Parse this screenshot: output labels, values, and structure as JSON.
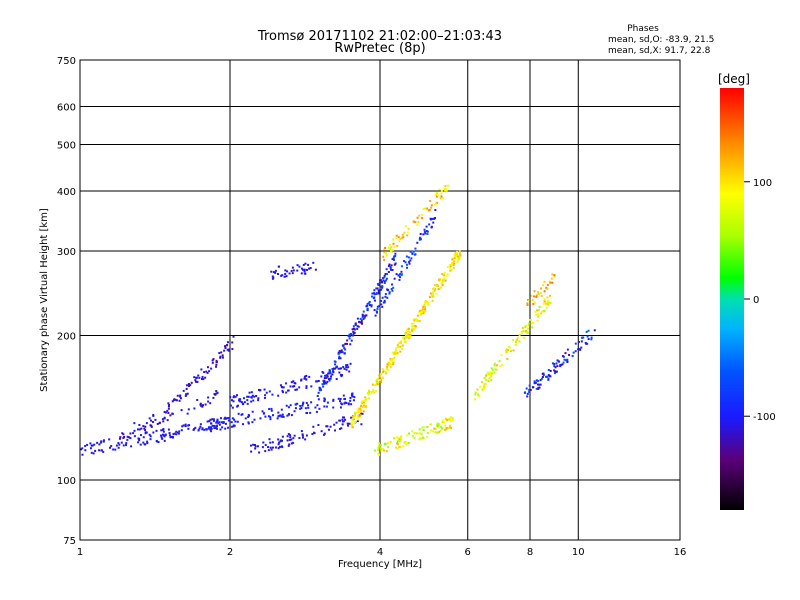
{
  "header": {
    "title_line1": "Tromsø 20171102 21:02:00–21:03:43",
    "title_line2": "RwPretec (8p)"
  },
  "stats": {
    "heading": "Phases",
    "line_O": "mean, sd,O: -83.9, 21.5",
    "line_X": "mean, sd,X:  91.7, 22.8"
  },
  "chart_data": {
    "type": "scatter",
    "xlabel": "Frequency [MHz]",
    "ylabel": "Stationary phase Virtual Height [km]",
    "x_scale": "log",
    "y_scale": "log",
    "xlim": [
      1,
      16
    ],
    "ylim": [
      75,
      750
    ],
    "x_ticks": [
      1,
      2,
      4,
      6,
      8,
      10,
      16
    ],
    "x_tick_labels": [
      "1",
      "2",
      "4",
      "6",
      "8",
      "10",
      "16"
    ],
    "y_ticks": [
      75,
      100,
      200,
      300,
      400,
      500,
      600,
      750
    ],
    "y_tick_labels": [
      "75",
      "100",
      "200",
      "300",
      "400",
      "500",
      "600",
      "750"
    ],
    "grid": true,
    "colorbar": {
      "label": "[deg]",
      "range": [
        -180,
        180
      ],
      "ticks": [
        100,
        0,
        -100
      ],
      "tick_labels": [
        "100",
        "0",
        "-100"
      ]
    },
    "traces": [
      {
        "x_range": [
          1.0,
          2.0
        ],
        "h0": 115,
        "h1": 132,
        "phase": -105,
        "spread": 10,
        "n": 140
      },
      {
        "x_range": [
          1.2,
          1.9
        ],
        "h0": 125,
        "h1": 150,
        "phase": -110,
        "spread": 12,
        "n": 60
      },
      {
        "x_range": [
          1.5,
          2.05
        ],
        "h0": 140,
        "h1": 195,
        "phase": -115,
        "spread": 16,
        "n": 70
      },
      {
        "x_range": [
          1.8,
          3.6
        ],
        "h0": 130,
        "h1": 148,
        "phase": -100,
        "spread": 6,
        "n": 130
      },
      {
        "x_range": [
          2.0,
          3.5
        ],
        "h0": 145,
        "h1": 170,
        "phase": -105,
        "spread": 8,
        "n": 110
      },
      {
        "x_range": [
          2.4,
          3.0
        ],
        "h0": 268,
        "h1": 280,
        "phase": -108,
        "spread": 6,
        "n": 40
      },
      {
        "x_range": [
          2.2,
          3.7
        ],
        "h0": 115,
        "h1": 135,
        "phase": -108,
        "spread": 8,
        "n": 90
      },
      {
        "x_range": [
          3.0,
          4.3
        ],
        "h0": 150,
        "h1": 290,
        "phase": -95,
        "spread": 35,
        "n": 170
      },
      {
        "x_range": [
          3.5,
          5.8
        ],
        "h0": 130,
        "h1": 300,
        "phase": 95,
        "spread": 30,
        "n": 280
      },
      {
        "x_range": [
          4.0,
          5.5
        ],
        "h0": 290,
        "h1": 410,
        "phase": 105,
        "spread": 35,
        "n": 70
      },
      {
        "x_range": [
          3.9,
          5.6
        ],
        "h0": 115,
        "h1": 132,
        "phase": 80,
        "spread": 40,
        "n": 110
      },
      {
        "x_range": [
          3.9,
          5.2
        ],
        "h0": 220,
        "h1": 360,
        "phase": -85,
        "spread": 30,
        "n": 80
      },
      {
        "x_range": [
          6.2,
          8.8
        ],
        "h0": 150,
        "h1": 240,
        "phase": 85,
        "spread": 35,
        "n": 110
      },
      {
        "x_range": [
          7.8,
          10.8
        ],
        "h0": 150,
        "h1": 205,
        "phase": -95,
        "spread": 40,
        "n": 90
      },
      {
        "x_range": [
          7.8,
          9.0
        ],
        "h0": 230,
        "h1": 265,
        "phase": 120,
        "spread": 25,
        "n": 30
      }
    ]
  }
}
